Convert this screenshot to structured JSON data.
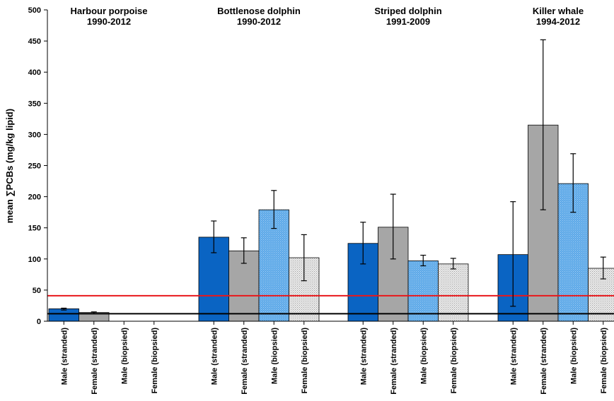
{
  "chart_data": {
    "type": "bar",
    "ylabel": "mean ∑PCBs (mg/kg lipid)",
    "ylim": [
      0,
      500
    ],
    "yticks": [
      0,
      50,
      100,
      150,
      200,
      250,
      300,
      350,
      400,
      450,
      500
    ],
    "grid": false,
    "reference_lines": [
      {
        "value": 41,
        "color": "#e8171b"
      },
      {
        "value": 12,
        "color": "#000000"
      }
    ],
    "colors": {
      "male_stranded": "#0a64c3",
      "female_stranded": "#a6a6a6",
      "male_biopsied": "#5aa7e8",
      "female_biopsied": "#e6e6e6"
    },
    "groups": [
      {
        "title_line1": "Harbour porpoise",
        "title_line2": "1990-2012",
        "bars": [
          {
            "label": "Male (stranded)",
            "value": 20,
            "err_low": 18,
            "err_high": 21,
            "style": "male_stranded"
          },
          {
            "label": "Female (stranded)",
            "value": 14,
            "err_low": 12,
            "err_high": 15,
            "style": "female_stranded"
          },
          {
            "label": "Male (biopsied)",
            "value": null,
            "style": "male_biopsied"
          },
          {
            "label": "Female (biopsied)",
            "value": null,
            "style": "female_biopsied"
          }
        ]
      },
      {
        "title_line1": "Bottlenose dolphin",
        "title_line2": "1990-2012",
        "bars": [
          {
            "label": "Male (stranded)",
            "value": 135,
            "err_low": 110,
            "err_high": 161,
            "style": "male_stranded"
          },
          {
            "label": "Female (stranded)",
            "value": 113,
            "err_low": 93,
            "err_high": 134,
            "style": "female_stranded"
          },
          {
            "label": "Male (biopsied)",
            "value": 179,
            "err_low": 149,
            "err_high": 210,
            "style": "male_biopsied"
          },
          {
            "label": "Female (biopsied)",
            "value": 102,
            "err_low": 65,
            "err_high": 139,
            "style": "female_biopsied"
          }
        ]
      },
      {
        "title_line1": "Striped dolphin",
        "title_line2": "1991-2009",
        "bars": [
          {
            "label": "Male (stranded)",
            "value": 125,
            "err_low": 92,
            "err_high": 159,
            "style": "male_stranded"
          },
          {
            "label": "Female (stranded)",
            "value": 151,
            "err_low": 100,
            "err_high": 204,
            "style": "female_stranded"
          },
          {
            "label": "Male (biopsied)",
            "value": 97,
            "err_low": 89,
            "err_high": 106,
            "style": "male_biopsied"
          },
          {
            "label": "Female (biopsied)",
            "value": 92,
            "err_low": 84,
            "err_high": 101,
            "style": "female_biopsied"
          }
        ]
      },
      {
        "title_line1": "Killer whale",
        "title_line2": "1994-2012",
        "bars": [
          {
            "label": "Male (stranded)",
            "value": 107,
            "err_low": 24,
            "err_high": 192,
            "style": "male_stranded"
          },
          {
            "label": "Female (stranded)",
            "value": 315,
            "err_low": 179,
            "err_high": 452,
            "style": "female_stranded"
          },
          {
            "label": "Male (biopsied)",
            "value": 221,
            "err_low": 175,
            "err_high": 269,
            "style": "male_biopsied"
          },
          {
            "label": "Female (biopsied)",
            "value": 85,
            "err_low": 68,
            "err_high": 103,
            "style": "female_biopsied"
          }
        ]
      }
    ]
  }
}
